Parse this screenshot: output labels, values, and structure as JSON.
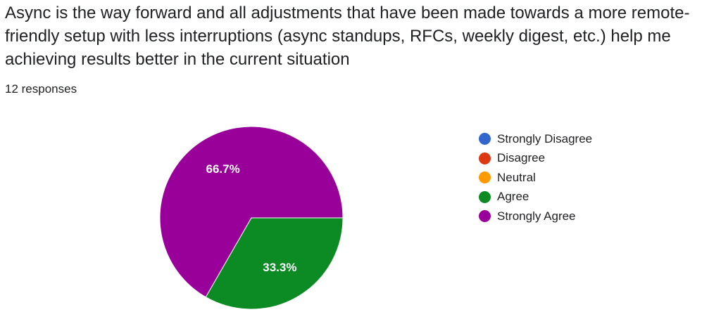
{
  "question": {
    "text": "Async is the way forward and all adjustments that have been made towards a more remote-friendly setup with less interruptions (async standups, RFCs, weekly digest, etc.) help me achieving results better in the current situation"
  },
  "responses_label": "12 responses",
  "chart_data": {
    "type": "pie",
    "title": "",
    "total_responses": 12,
    "categories": [
      "Strongly Disagree",
      "Disagree",
      "Neutral",
      "Agree",
      "Strongly Agree"
    ],
    "values": [
      0,
      0,
      0,
      33.3,
      66.7
    ],
    "value_labels": [
      "",
      "",
      "",
      "33.3%",
      "66.7%"
    ],
    "colors": [
      "#3366cc",
      "#dc3912",
      "#ff9900",
      "#0c8a24",
      "#990099"
    ],
    "legend_position": "right"
  }
}
